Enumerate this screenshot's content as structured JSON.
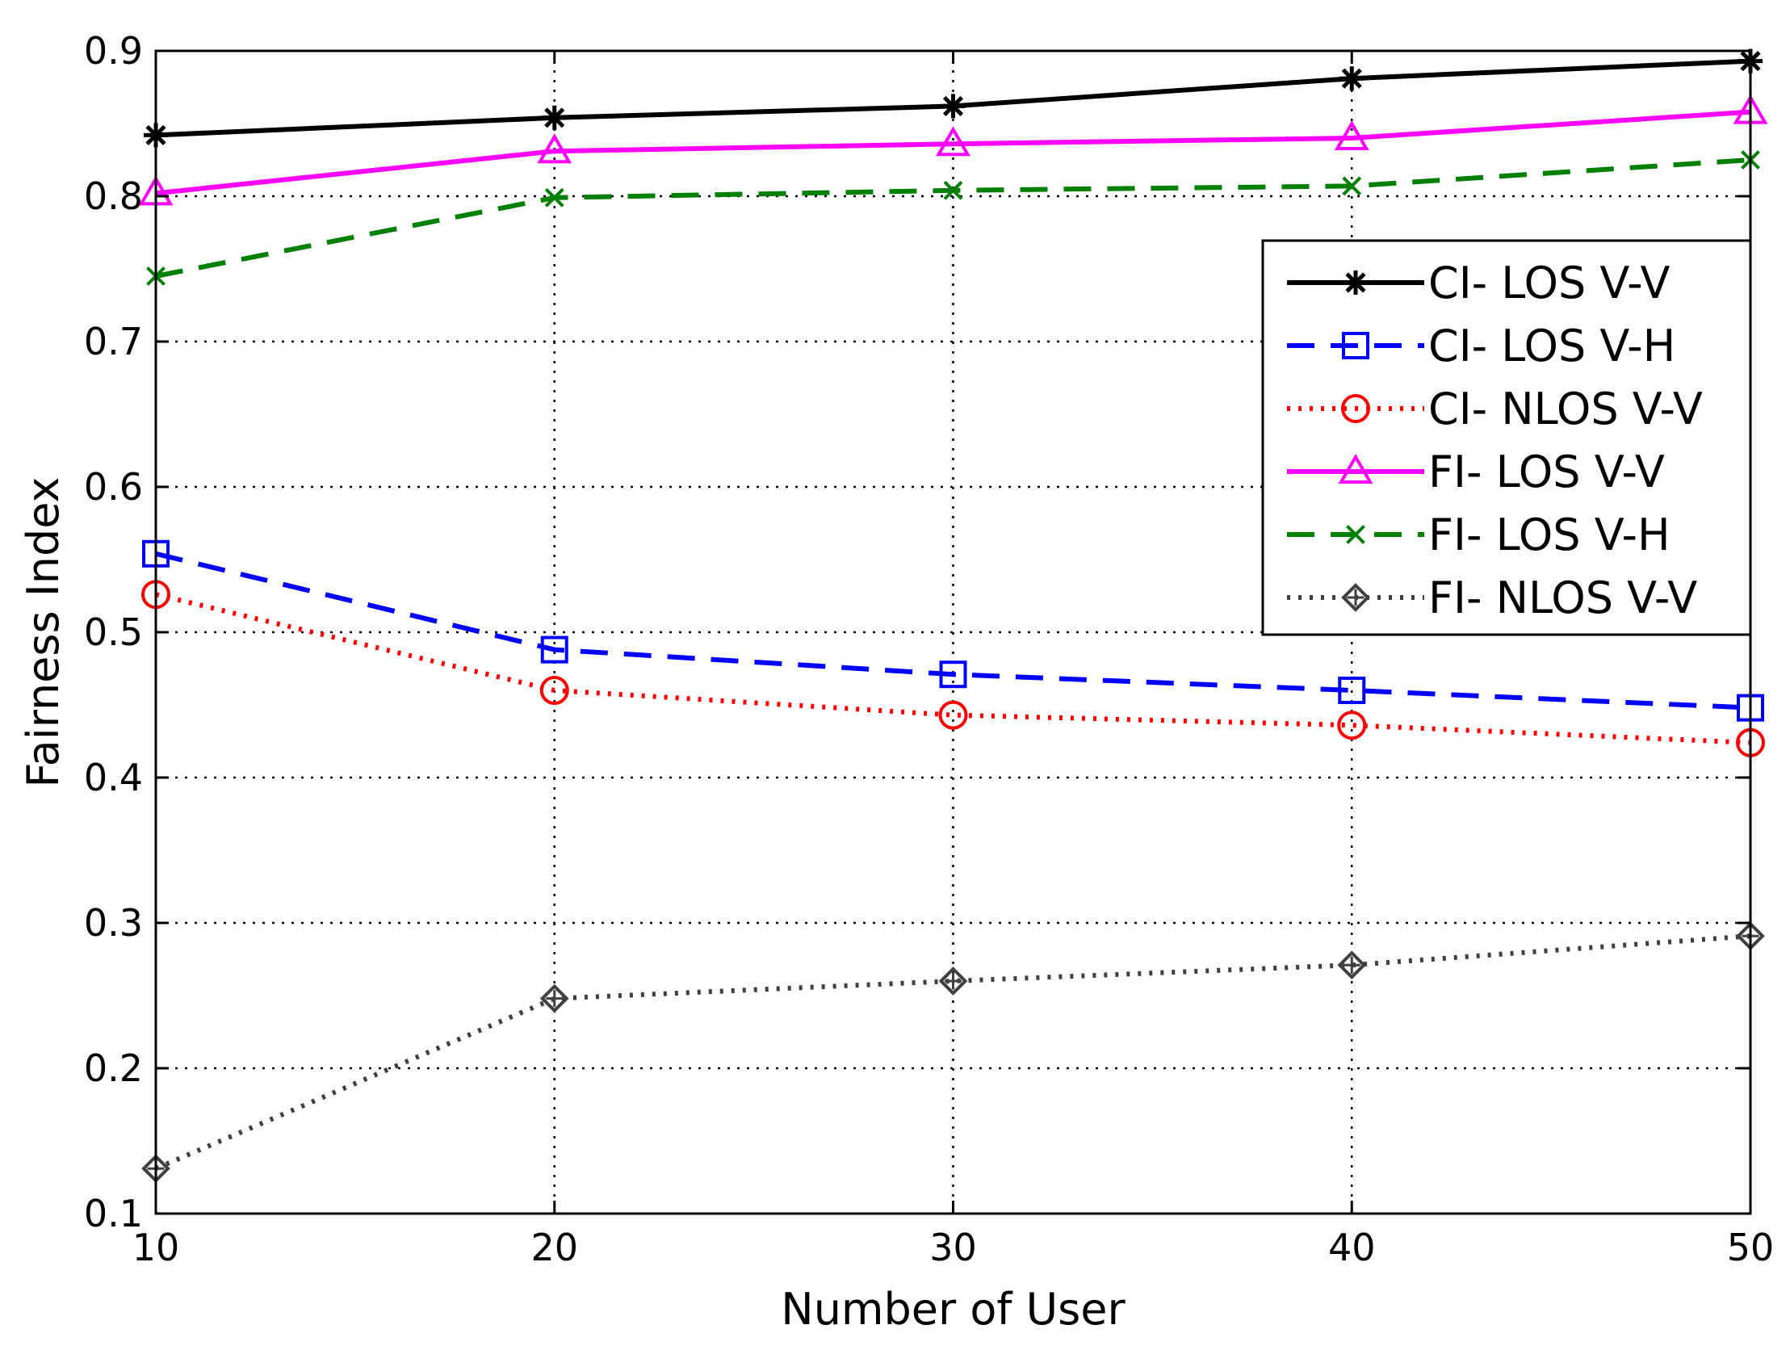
{
  "chart_data": {
    "type": "line",
    "title": "",
    "xlabel": "Number of User",
    "ylabel": "Fairness Index",
    "x": [
      10,
      20,
      30,
      40,
      50
    ],
    "xlim": [
      10,
      50
    ],
    "ylim": [
      0.1,
      0.9
    ],
    "xticks": [
      10,
      20,
      30,
      40,
      50
    ],
    "yticks": [
      0.1,
      0.2,
      0.3,
      0.4,
      0.5,
      0.6,
      0.7,
      0.8,
      0.9
    ],
    "xtick_labels": [
      "10",
      "20",
      "30",
      "40",
      "50"
    ],
    "ytick_labels": [
      "0.1",
      "0.2",
      "0.3",
      "0.4",
      "0.5",
      "0.6",
      "0.7",
      "0.8",
      "0.9"
    ],
    "grid": true,
    "legend_position": "right",
    "series": [
      {
        "name": "CI- LOS V-V",
        "values": [
          0.842,
          0.854,
          0.862,
          0.881,
          0.893
        ],
        "color": "#000000",
        "line": "solid",
        "marker": "star"
      },
      {
        "name": "CI- LOS V-H",
        "values": [
          0.554,
          0.488,
          0.471,
          0.46,
          0.448
        ],
        "color": "#0000ff",
        "line": "dashed",
        "marker": "square"
      },
      {
        "name": "CI- NLOS V-V",
        "values": [
          0.526,
          0.46,
          0.443,
          0.436,
          0.424
        ],
        "color": "#ff0000",
        "line": "dotted",
        "marker": "circle"
      },
      {
        "name": "FI- LOS V-V",
        "values": [
          0.802,
          0.831,
          0.836,
          0.84,
          0.858
        ],
        "color": "#ff00ff",
        "line": "solid",
        "marker": "triangle"
      },
      {
        "name": "FI- LOS V-H",
        "values": [
          0.745,
          0.799,
          0.804,
          0.807,
          0.825
        ],
        "color": "#008000",
        "line": "dashed",
        "marker": "x"
      },
      {
        "name": "FI- NLOS V-V",
        "values": [
          0.131,
          0.248,
          0.26,
          0.271,
          0.291
        ],
        "color": "#404040",
        "line": "dotted",
        "marker": "diamond"
      }
    ]
  }
}
